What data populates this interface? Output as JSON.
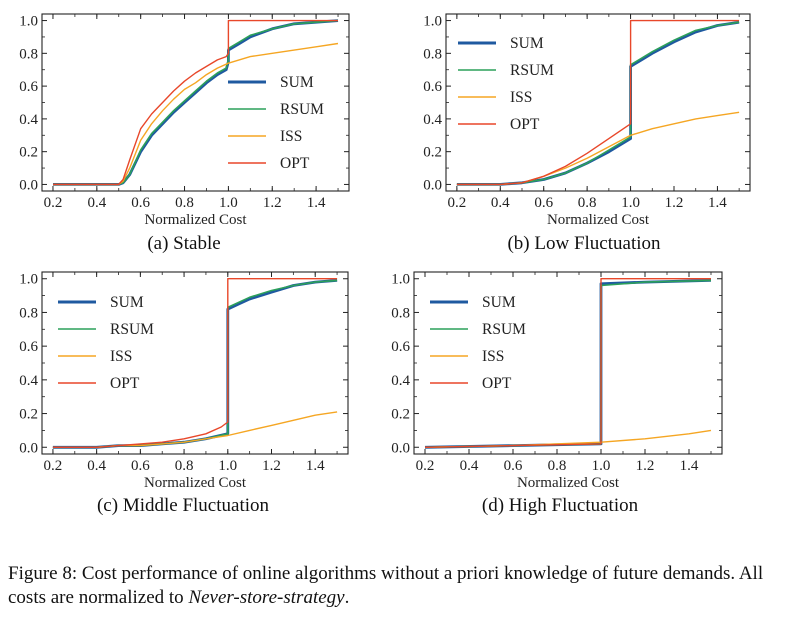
{
  "chart_data": [
    {
      "type": "line",
      "title": "",
      "subcaption": "(a) Stable",
      "xlabel": "Normalized Cost",
      "ylabel": "",
      "xlim": [
        0.15,
        1.55
      ],
      "ylim": [
        -0.04,
        1.04
      ],
      "xticks": [
        "0.2",
        "0.4",
        "0.6",
        "0.8",
        "1.0",
        "1.2",
        "1.4"
      ],
      "yticks": [
        "0.0",
        "0.2",
        "0.4",
        "0.6",
        "0.8",
        "1.0"
      ],
      "grid": false,
      "legend": "right-center",
      "series": [
        {
          "name": "SUM",
          "color": "#1f5aa0",
          "x": [
            0.2,
            0.5,
            0.52,
            0.55,
            0.6,
            0.65,
            0.7,
            0.75,
            0.8,
            0.85,
            0.9,
            0.95,
            0.99,
            1.0,
            1.0,
            1.05,
            1.1,
            1.2,
            1.3,
            1.4,
            1.5
          ],
          "y": [
            0.0,
            0.0,
            0.01,
            0.06,
            0.2,
            0.3,
            0.37,
            0.44,
            0.5,
            0.56,
            0.62,
            0.67,
            0.7,
            0.75,
            0.82,
            0.86,
            0.9,
            0.95,
            0.98,
            0.99,
            1.0
          ]
        },
        {
          "name": "RSUM",
          "color": "#2ca05a",
          "x": [
            0.2,
            0.5,
            0.52,
            0.55,
            0.6,
            0.65,
            0.7,
            0.75,
            0.8,
            0.85,
            0.9,
            0.95,
            0.99,
            1.0,
            1.0,
            1.05,
            1.1,
            1.2,
            1.3,
            1.4,
            1.5
          ],
          "y": [
            0.0,
            0.0,
            0.01,
            0.06,
            0.21,
            0.31,
            0.38,
            0.45,
            0.51,
            0.57,
            0.63,
            0.68,
            0.71,
            0.76,
            0.83,
            0.87,
            0.91,
            0.95,
            0.98,
            0.99,
            1.0
          ]
        },
        {
          "name": "ISS",
          "color": "#f5a623",
          "x": [
            0.2,
            0.5,
            0.52,
            0.55,
            0.6,
            0.65,
            0.7,
            0.75,
            0.8,
            0.85,
            0.9,
            0.95,
            1.0,
            1.1,
            1.2,
            1.3,
            1.4,
            1.5
          ],
          "y": [
            0.0,
            0.0,
            0.02,
            0.1,
            0.27,
            0.37,
            0.45,
            0.52,
            0.58,
            0.62,
            0.67,
            0.71,
            0.74,
            0.78,
            0.8,
            0.82,
            0.84,
            0.86
          ]
        },
        {
          "name": "OPT",
          "color": "#e8472a",
          "x": [
            0.2,
            0.5,
            0.52,
            0.55,
            0.6,
            0.65,
            0.7,
            0.75,
            0.8,
            0.85,
            0.9,
            0.95,
            0.99,
            1.0,
            1.0,
            1.5
          ],
          "y": [
            0.0,
            0.0,
            0.03,
            0.15,
            0.34,
            0.43,
            0.5,
            0.57,
            0.63,
            0.68,
            0.72,
            0.76,
            0.78,
            0.8,
            1.0,
            1.0
          ]
        }
      ]
    },
    {
      "type": "line",
      "title": "",
      "subcaption": "(b) Low Fluctuation",
      "xlabel": "Normalized Cost",
      "ylabel": "",
      "xlim": [
        0.15,
        1.55
      ],
      "ylim": [
        -0.04,
        1.04
      ],
      "xticks": [
        "0.2",
        "0.4",
        "0.6",
        "0.8",
        "1.0",
        "1.2",
        "1.4"
      ],
      "yticks": [
        "0.0",
        "0.2",
        "0.4",
        "0.6",
        "0.8",
        "1.0"
      ],
      "grid": false,
      "legend": "top-left",
      "series": [
        {
          "name": "SUM",
          "color": "#1f5aa0",
          "x": [
            0.2,
            0.4,
            0.5,
            0.6,
            0.7,
            0.8,
            0.9,
            1.0,
            1.0,
            1.05,
            1.1,
            1.2,
            1.3,
            1.4,
            1.5
          ],
          "y": [
            0.0,
            0.0,
            0.01,
            0.03,
            0.07,
            0.13,
            0.2,
            0.28,
            0.72,
            0.76,
            0.8,
            0.87,
            0.93,
            0.97,
            0.99
          ]
        },
        {
          "name": "RSUM",
          "color": "#2ca05a",
          "x": [
            0.2,
            0.4,
            0.5,
            0.6,
            0.7,
            0.8,
            0.9,
            1.0,
            1.0,
            1.05,
            1.1,
            1.2,
            1.3,
            1.4,
            1.5
          ],
          "y": [
            0.0,
            0.0,
            0.01,
            0.03,
            0.07,
            0.13,
            0.21,
            0.29,
            0.73,
            0.77,
            0.81,
            0.88,
            0.94,
            0.97,
            0.99
          ]
        },
        {
          "name": "ISS",
          "color": "#f5a623",
          "x": [
            0.2,
            0.4,
            0.5,
            0.6,
            0.7,
            0.8,
            0.9,
            1.0,
            1.1,
            1.2,
            1.3,
            1.4,
            1.5
          ],
          "y": [
            0.0,
            0.0,
            0.01,
            0.05,
            0.1,
            0.16,
            0.23,
            0.3,
            0.34,
            0.37,
            0.4,
            0.42,
            0.44
          ]
        },
        {
          "name": "OPT",
          "color": "#e8472a",
          "x": [
            0.2,
            0.4,
            0.5,
            0.6,
            0.7,
            0.8,
            0.9,
            1.0,
            1.0,
            1.5
          ],
          "y": [
            0.0,
            0.0,
            0.01,
            0.05,
            0.11,
            0.19,
            0.28,
            0.37,
            1.0,
            1.0
          ]
        }
      ]
    },
    {
      "type": "line",
      "title": "",
      "subcaption": "(c) Middle Fluctuation",
      "xlabel": "Normalized Cost",
      "ylabel": "",
      "xlim": [
        0.15,
        1.55
      ],
      "ylim": [
        -0.04,
        1.04
      ],
      "xticks": [
        "0.2",
        "0.4",
        "0.6",
        "0.8",
        "1.0",
        "1.2",
        "1.4"
      ],
      "yticks": [
        "0.0",
        "0.2",
        "0.4",
        "0.6",
        "0.8",
        "1.0"
      ],
      "grid": false,
      "legend": "top-left",
      "series": [
        {
          "name": "SUM",
          "color": "#1f5aa0",
          "x": [
            0.2,
            0.4,
            0.5,
            0.6,
            0.7,
            0.8,
            0.9,
            1.0,
            1.0,
            1.05,
            1.1,
            1.2,
            1.3,
            1.4,
            1.5
          ],
          "y": [
            0.0,
            0.0,
            0.01,
            0.01,
            0.02,
            0.03,
            0.05,
            0.08,
            0.82,
            0.85,
            0.88,
            0.92,
            0.96,
            0.98,
            0.99
          ]
        },
        {
          "name": "RSUM",
          "color": "#2ca05a",
          "x": [
            0.2,
            0.4,
            0.5,
            0.6,
            0.7,
            0.8,
            0.9,
            1.0,
            1.0,
            1.05,
            1.1,
            1.2,
            1.3,
            1.4,
            1.5
          ],
          "y": [
            0.0,
            0.0,
            0.01,
            0.01,
            0.02,
            0.03,
            0.05,
            0.08,
            0.83,
            0.86,
            0.89,
            0.93,
            0.96,
            0.98,
            0.99
          ]
        },
        {
          "name": "ISS",
          "color": "#f5a623",
          "x": [
            0.2,
            0.4,
            0.5,
            0.6,
            0.7,
            0.8,
            0.9,
            1.0,
            1.1,
            1.2,
            1.3,
            1.4,
            1.5
          ],
          "y": [
            0.0,
            0.0,
            0.01,
            0.01,
            0.02,
            0.03,
            0.05,
            0.07,
            0.1,
            0.13,
            0.16,
            0.19,
            0.21
          ]
        },
        {
          "name": "OPT",
          "color": "#e8472a",
          "x": [
            0.2,
            0.4,
            0.5,
            0.6,
            0.7,
            0.8,
            0.9,
            0.97,
            1.0,
            1.0,
            1.5
          ],
          "y": [
            0.0,
            0.0,
            0.01,
            0.02,
            0.03,
            0.05,
            0.08,
            0.12,
            0.15,
            1.0,
            1.0
          ]
        }
      ]
    },
    {
      "type": "line",
      "title": "",
      "subcaption": "(d) High Fluctuation",
      "xlabel": "Normalized Cost",
      "ylabel": "",
      "xlim": [
        0.15,
        1.55
      ],
      "ylim": [
        -0.04,
        1.04
      ],
      "xticks": [
        "0.2",
        "0.4",
        "0.6",
        "0.8",
        "1.0",
        "1.2",
        "1.4"
      ],
      "yticks": [
        "0.0",
        "0.2",
        "0.4",
        "0.6",
        "0.8",
        "1.0"
      ],
      "grid": false,
      "legend": "top-left",
      "series": [
        {
          "name": "SUM",
          "color": "#1f5aa0",
          "x": [
            0.2,
            0.6,
            1.0,
            1.0,
            1.2,
            1.5
          ],
          "y": [
            0.0,
            0.01,
            0.02,
            0.97,
            0.98,
            0.99
          ]
        },
        {
          "name": "RSUM",
          "color": "#2ca05a",
          "x": [
            0.2,
            0.6,
            1.0,
            1.0,
            1.2,
            1.5
          ],
          "y": [
            0.0,
            0.01,
            0.02,
            0.96,
            0.98,
            0.99
          ]
        },
        {
          "name": "ISS",
          "color": "#f5a623",
          "x": [
            0.2,
            0.6,
            1.0,
            1.2,
            1.4,
            1.5
          ],
          "y": [
            0.0,
            0.01,
            0.03,
            0.05,
            0.08,
            0.1
          ]
        },
        {
          "name": "OPT",
          "color": "#e8472a",
          "x": [
            0.2,
            0.6,
            1.0,
            1.0,
            1.5
          ],
          "y": [
            0.0,
            0.01,
            0.02,
            1.0,
            1.0
          ]
        }
      ]
    }
  ],
  "caption": {
    "text_before": "Figure 8: Cost performance of online algorithms without a priori knowledge of future demands. All costs are normalized to ",
    "emphasis": "Never-store-strategy",
    "text_after": "."
  }
}
